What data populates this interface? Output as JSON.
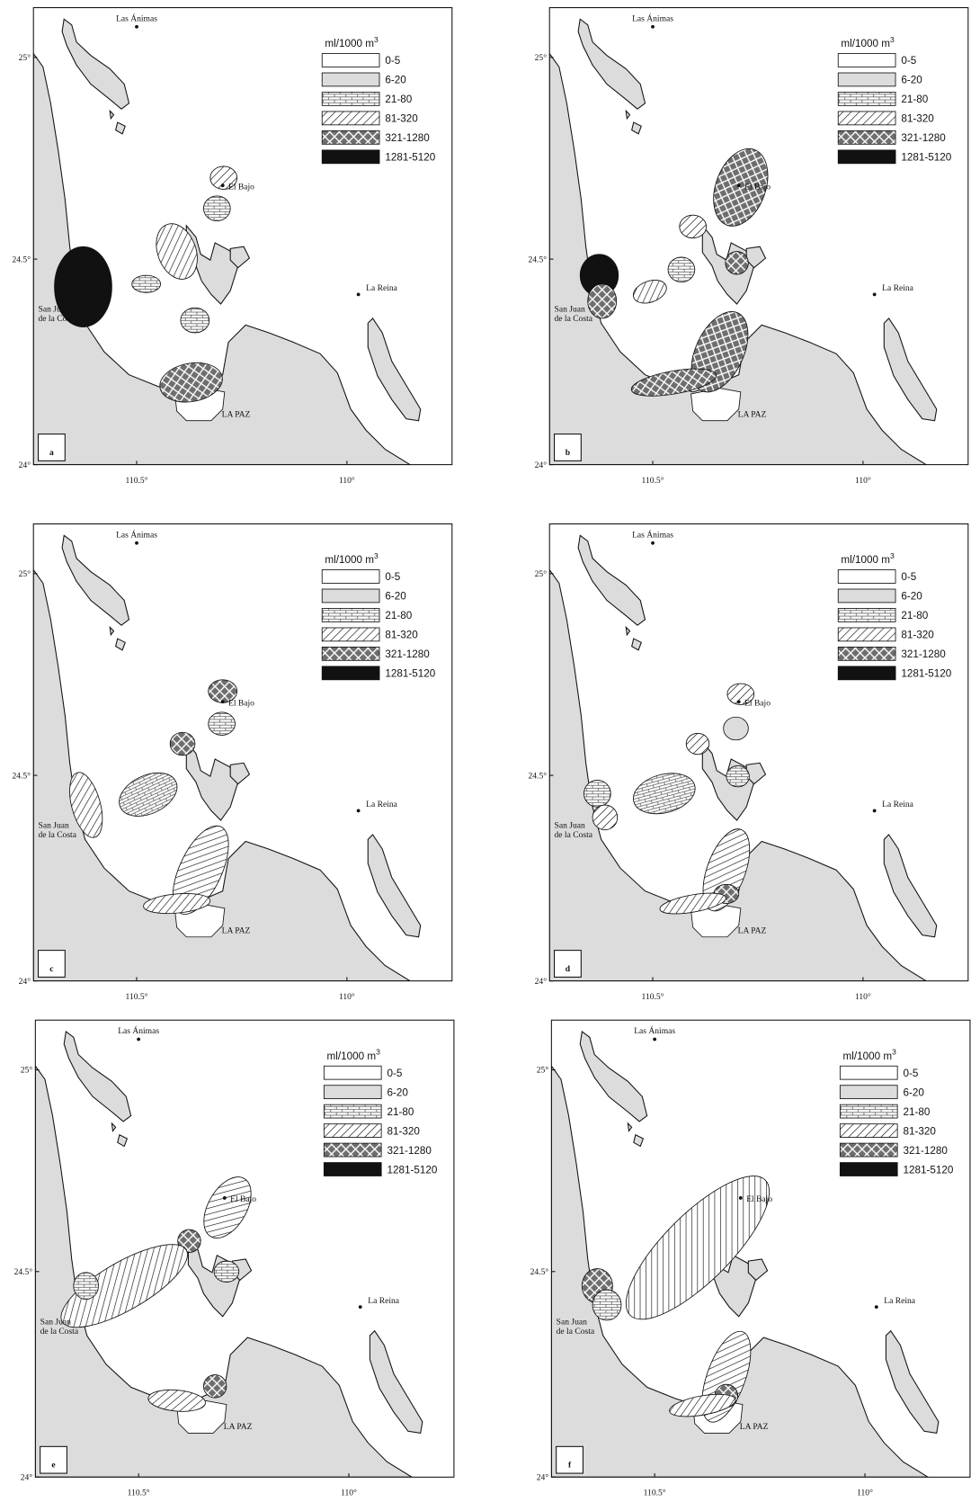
{
  "legend": {
    "title": "ml/1000 m",
    "title_superscript": "3",
    "classes": [
      "0-5",
      "6-20",
      "21-80",
      "81-320",
      "321-1280",
      "1281-5120"
    ]
  },
  "places": {
    "north": "Las Ánimas",
    "bank": "El Bajo",
    "island": "La Reina",
    "coast_1": "San Juan",
    "coast_2": "de la Costa",
    "city": "LA PAZ"
  },
  "axes": {
    "lat": [
      "25°",
      "24.5°",
      "24°"
    ],
    "lon": [
      "110.5°",
      "110°"
    ]
  },
  "panels": [
    {
      "label": "a"
    },
    {
      "label": "b"
    },
    {
      "label": "c"
    },
    {
      "label": "d"
    },
    {
      "label": "e"
    },
    {
      "label": "f"
    }
  ]
}
